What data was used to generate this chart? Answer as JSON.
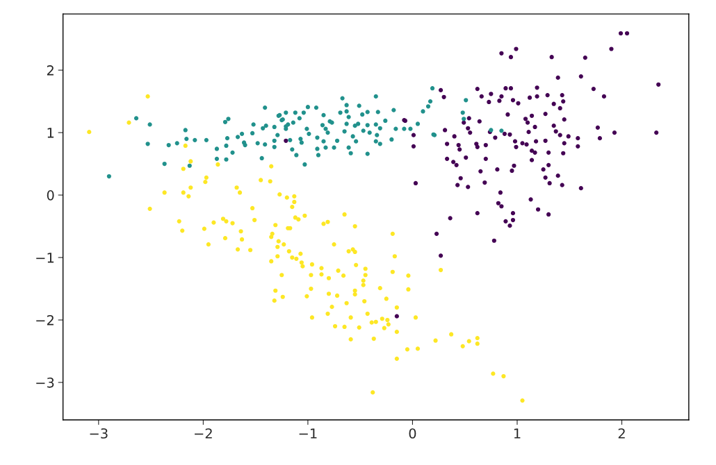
{
  "chart_data": {
    "type": "scatter",
    "marker": "circle",
    "grid": false,
    "legend": false,
    "xlim": [
      -3.34,
      2.64
    ],
    "ylim": [
      -3.6,
      2.9
    ],
    "xticks": [
      -3,
      -2,
      -1,
      0,
      1,
      2
    ],
    "yticks": [
      -3,
      -2,
      -1,
      0,
      1,
      2
    ],
    "series": [
      {
        "color": "#440154",
        "x": [
          1.99,
          2.05,
          1.9,
          0.99,
          0.85,
          0.94,
          1.33,
          1.65,
          1.39,
          1.61,
          2.35,
          1.73,
          1.83,
          0.27,
          0.3,
          0.62,
          0.66,
          0.75,
          0.73,
          0.85,
          0.83,
          0.89,
          0.94,
          1.19,
          1.19,
          1.12,
          1.29,
          1.43,
          1.44,
          1.35,
          1.41,
          0.96,
          1.01,
          0.91,
          1.27,
          1.14,
          1.08,
          1.1,
          1.45,
          0.54,
          0.49,
          0.64,
          -0.07,
          0.53,
          0.55,
          0.31,
          0.01,
          0.01,
          0.4,
          0.74,
          0.79,
          0.88,
          0.93,
          1.17,
          1.11,
          1.35,
          1.37,
          1.41,
          1.49,
          1.58,
          1.77,
          1.79,
          1.93,
          2.33,
          0.33,
          0.44,
          0.45,
          0.61,
          0.62,
          0.7,
          0.98,
          0.99,
          1.05,
          1.09,
          1.18,
          1.27,
          1.45,
          1.58,
          1.14,
          1.17,
          1.3,
          1.44,
          1.14,
          0.33,
          0.39,
          0.42,
          0.51,
          0.7,
          0.65,
          0.81,
          0.97,
          0.95,
          1.25,
          1.3,
          1.27,
          1.39,
          1.31,
          1.43,
          1.61,
          0.03,
          0.46,
          0.43,
          0.53,
          0.69,
          0.84,
          1.13,
          0.82,
          0.85,
          1.2,
          1.3,
          0.62,
          0.96,
          0.96,
          0.89,
          0.93,
          0.36,
          0.23,
          0.78,
          0.27,
          -0.15,
          -1.21,
          -0.08
        ],
        "values": [
          2.59,
          2.59,
          2.34,
          2.34,
          2.27,
          2.21,
          2.21,
          2.2,
          1.88,
          1.9,
          1.77,
          1.7,
          1.58,
          1.68,
          1.57,
          1.7,
          1.58,
          1.62,
          1.49,
          1.58,
          1.51,
          1.71,
          1.71,
          1.72,
          1.58,
          1.56,
          1.6,
          1.6,
          1.5,
          1.46,
          1.39,
          1.52,
          1.47,
          1.29,
          1.3,
          1.27,
          1.22,
          1.16,
          1.21,
          1.23,
          1.16,
          1.18,
          1.19,
          1.07,
          1.0,
          1.04,
          0.96,
          0.78,
          0.94,
          1.01,
          0.92,
          0.98,
          0.97,
          1.09,
          1.01,
          1.11,
          1.02,
          0.96,
          0.94,
          0.91,
          1.08,
          0.91,
          1.0,
          1.0,
          0.82,
          0.8,
          0.73,
          0.82,
          0.77,
          0.8,
          0.86,
          0.77,
          0.83,
          0.81,
          0.86,
          0.87,
          0.83,
          0.78,
          0.71,
          0.68,
          0.68,
          0.67,
          0.56,
          0.58,
          0.53,
          0.48,
          0.6,
          0.58,
          0.38,
          0.41,
          0.47,
          0.39,
          0.41,
          0.48,
          0.28,
          0.31,
          0.19,
          0.16,
          0.11,
          0.19,
          0.27,
          0.16,
          0.13,
          0.2,
          0.04,
          -0.07,
          -0.13,
          -0.18,
          -0.23,
          -0.31,
          -0.29,
          -0.29,
          -0.4,
          -0.42,
          -0.49,
          -0.37,
          -0.62,
          -0.73,
          -0.97,
          -1.94,
          0.87,
          1.2
        ]
      },
      {
        "color": "#21918c",
        "x": [
          -2.9,
          -2.64,
          -2.51,
          -2.53,
          -2.37,
          -2.33,
          -2.25,
          -2.17,
          -2.16,
          -2.08,
          -2.13,
          -1.97,
          -1.87,
          -1.87,
          -1.78,
          -1.78,
          -1.77,
          -1.72,
          -1.79,
          -1.76,
          -1.67,
          -1.63,
          -1.61,
          -1.6,
          -1.52,
          -1.53,
          -1.48,
          -1.41,
          -1.43,
          -1.4,
          -1.41,
          -1.44,
          -1.32,
          -1.28,
          -1.21,
          -1.32,
          -1.32,
          -1.29,
          -1.24,
          -1.21,
          -1.27,
          -1.25,
          -1.19,
          -1.14,
          -1.21,
          -1.12,
          -1.08,
          -1.04,
          -1.0,
          -0.92,
          -0.85,
          -0.79,
          -0.77,
          -0.86,
          -0.83,
          -0.81,
          -1.01,
          -0.99,
          -1.17,
          -1.07,
          -1.06,
          -0.91,
          -0.85,
          -0.91,
          -0.9,
          -0.83,
          -0.75,
          -0.72,
          -1.11,
          -1.03,
          -1.15,
          -0.69,
          -0.67,
          -0.63,
          -0.63,
          -0.61,
          -0.63,
          -0.65,
          -0.57,
          -0.54,
          -0.61,
          -0.59,
          -0.55,
          -0.52,
          -0.51,
          -0.48,
          -0.43,
          -0.47,
          -0.43,
          -0.41,
          -0.43,
          -0.35,
          -0.33,
          -0.35,
          -0.31,
          -0.34,
          -0.35,
          -0.31,
          -0.26,
          -0.2,
          -0.18,
          -0.16,
          -0.08,
          -0.02,
          0.05,
          0.1,
          0.15,
          0.17,
          0.19,
          0.21,
          0.51,
          0.48,
          0.49,
          0.75,
          0.85,
          0.2
        ],
        "values": [
          0.3,
          1.23,
          1.13,
          0.82,
          0.5,
          0.8,
          0.83,
          1.04,
          0.9,
          0.88,
          0.47,
          0.88,
          0.74,
          0.58,
          0.57,
          0.79,
          0.91,
          0.68,
          1.17,
          1.22,
          0.93,
          0.98,
          0.84,
          0.8,
          1.13,
          0.99,
          0.83,
          1.4,
          1.07,
          1.11,
          0.81,
          0.59,
          1.09,
          1.27,
          1.32,
          0.87,
          0.77,
          0.96,
          1.21,
          1.1,
          1.28,
          1.2,
          1.13,
          1.16,
          1.06,
          1.32,
          1.23,
          1.32,
          1.41,
          1.4,
          1.28,
          1.18,
          1.16,
          1.12,
          1.06,
          1.0,
          1.06,
          0.98,
          0.88,
          0.9,
          0.84,
          0.92,
          0.86,
          0.74,
          0.64,
          0.76,
          0.76,
          0.87,
          0.64,
          0.49,
          0.73,
          1.32,
          1.55,
          1.44,
          1.34,
          1.25,
          1.14,
          1.02,
          0.94,
          0.86,
          0.76,
          0.67,
          1.11,
          1.14,
          1.43,
          1.29,
          1.33,
          1.03,
          1.12,
          1.0,
          0.66,
          1.58,
          1.33,
          1.13,
          1.07,
          0.96,
          0.86,
          0.82,
          1.19,
          0.89,
          1.36,
          1.06,
          1.06,
          1.06,
          1.14,
          1.34,
          1.42,
          1.5,
          1.71,
          0.96,
          1.52,
          1.32,
          1.22,
          1.04,
          1.03,
          0.97
        ]
      },
      {
        "color": "#fde725",
        "x": [
          -3.09,
          -2.71,
          -2.53,
          -2.17,
          -2.12,
          -2.19,
          -2.37,
          -2.19,
          -2.14,
          -2.12,
          -2.51,
          -1.97,
          -1.98,
          -1.86,
          -1.68,
          -1.65,
          -1.53,
          -1.45,
          -1.36,
          -1.35,
          -1.27,
          -1.2,
          -2.23,
          -2.2,
          -1.99,
          -1.9,
          -1.95,
          -1.81,
          -1.78,
          -1.72,
          -1.79,
          -1.64,
          -1.63,
          -1.67,
          -1.55,
          -1.51,
          -1.13,
          -1.13,
          -1.15,
          -1.12,
          -1.09,
          -1.03,
          -1.31,
          -1.19,
          -1.17,
          -0.85,
          -0.81,
          -1.34,
          -1.35,
          -1.28,
          -1.29,
          -1.23,
          -1.35,
          -1.29,
          -1.18,
          -1.15,
          -1.11,
          -1.07,
          -1.06,
          -1.05,
          -0.96,
          -0.87,
          -0.87,
          -0.97,
          -1.25,
          -0.8,
          -1.31,
          -1.24,
          -1.32,
          -0.97,
          -1.01,
          -0.8,
          -0.77,
          -0.81,
          -0.96,
          -0.65,
          -0.55,
          -0.19,
          -0.75,
          -0.61,
          -0.57,
          -0.55,
          -0.17,
          -0.71,
          -0.66,
          -0.54,
          -0.45,
          -0.45,
          -0.47,
          -0.47,
          -0.19,
          -0.04,
          -0.04,
          -0.31,
          -0.25,
          -0.55,
          -0.55,
          -0.72,
          -0.63,
          -0.46,
          -0.59,
          -0.43,
          -0.39,
          -0.35,
          -0.29,
          -0.24,
          -0.23,
          -0.27,
          -0.15,
          0.03,
          -0.74,
          -0.65,
          -0.51,
          -0.59,
          -0.37,
          -0.15,
          -0.05,
          0.05,
          -0.15,
          0.22,
          0.37,
          0.48,
          0.54,
          0.62,
          0.62,
          0.77,
          0.87,
          1.05,
          -0.38,
          0.27
        ],
        "values": [
          1.01,
          1.16,
          1.58,
          0.79,
          0.54,
          0.42,
          0.04,
          0.04,
          -0.02,
          0.12,
          -0.22,
          0.28,
          0.21,
          0.49,
          0.12,
          0.04,
          -0.21,
          0.24,
          0.22,
          0.46,
          0.01,
          -0.04,
          -0.42,
          -0.57,
          -0.54,
          -0.44,
          -0.79,
          -0.38,
          -0.42,
          -0.45,
          -0.69,
          -0.58,
          -0.71,
          -0.87,
          -0.88,
          -0.4,
          -0.02,
          -0.11,
          -0.19,
          -0.36,
          -0.39,
          -0.33,
          -0.48,
          -0.53,
          -0.53,
          -0.46,
          -0.43,
          -0.62,
          -0.67,
          -0.74,
          -0.83,
          -0.79,
          -1.06,
          -0.98,
          -0.9,
          -1.0,
          -1.02,
          -0.94,
          -1.08,
          -1.14,
          -1.11,
          -1.17,
          -1.27,
          -1.28,
          -1.28,
          -1.33,
          -1.53,
          -1.63,
          -1.69,
          -1.5,
          -1.62,
          -1.58,
          -1.79,
          -1.9,
          -1.96,
          -0.31,
          -0.5,
          -0.62,
          -0.79,
          -0.9,
          -0.87,
          -0.91,
          -0.98,
          -1.21,
          -1.29,
          -1.12,
          -1.18,
          -1.28,
          -1.37,
          -1.44,
          -1.23,
          -1.29,
          -1.51,
          -1.49,
          -1.66,
          -1.53,
          -1.59,
          -1.61,
          -1.73,
          -1.7,
          -1.96,
          -1.9,
          -2.04,
          -2.03,
          -1.98,
          -2.0,
          -2.07,
          -2.13,
          -1.8,
          -1.96,
          -2.1,
          -2.11,
          -2.12,
          -2.31,
          -2.3,
          -2.19,
          -2.47,
          -2.46,
          -2.62,
          -2.33,
          -2.23,
          -2.42,
          -2.34,
          -2.29,
          -2.38,
          -2.86,
          -2.9,
          -3.29,
          -3.16,
          -1.2
        ]
      }
    ]
  }
}
